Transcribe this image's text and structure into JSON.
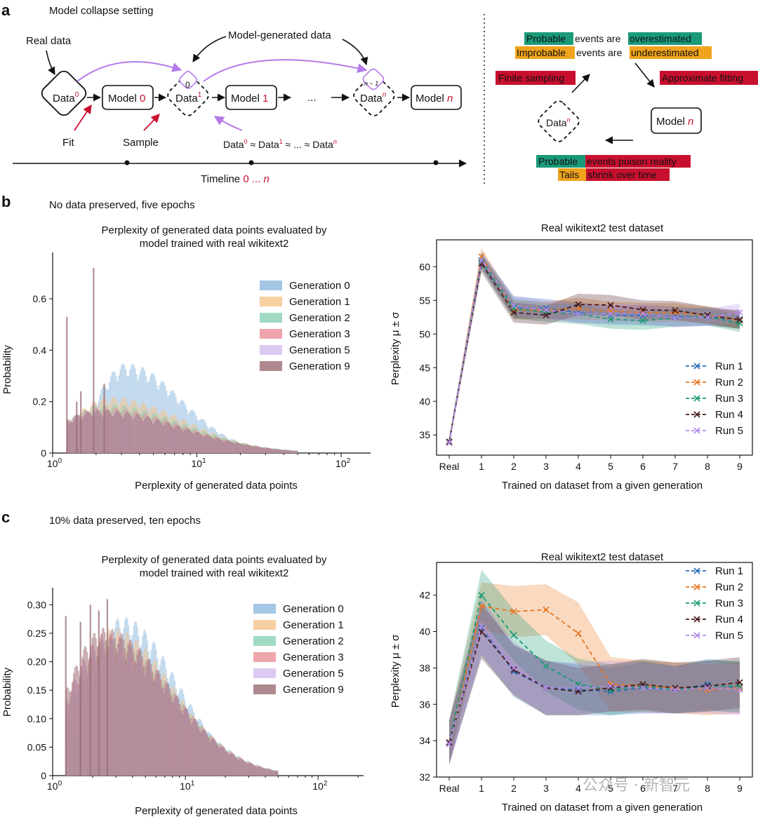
{
  "panel_a": {
    "panel_letter": "a",
    "setting_title": "Model collapse setting",
    "real_data_label": "Real data",
    "model_generated_label": "Model-generated data",
    "nodes": {
      "data_base": "Data",
      "model_base": "Model",
      "ellipsis": "...",
      "sup0": "0",
      "sup1": "1",
      "supn": "n",
      "model0_idx": "0",
      "model1_idx": "1",
      "modeln_idx": "n",
      "badge0": "0",
      "badge_n1": "n − 1"
    },
    "fit_label": "Fit",
    "sample_label": "Sample",
    "approx_formula": {
      "t1": "Data",
      "s1": "0",
      "t2": " ≈ Data",
      "s2": "1",
      "t3": " ≈ ... ≈ Data",
      "s3": "n"
    },
    "timeline": {
      "label": "Timeline",
      "range_start": "0",
      "range_sep": " ... ",
      "range_end": "n"
    },
    "right": {
      "probable": "Probable",
      "events_are": "events are",
      "overestimated": "overestimated",
      "improbable": "Improbable",
      "underestimated": "underestimated",
      "finite_sampling": "Finite sampling",
      "approximate_fitting": "Approximate fitting",
      "data_n": "Data",
      "data_n_sup": "n",
      "model_n": "Model",
      "model_n_idx": "n",
      "poison_probable": "Probable",
      "poison_rest": "events poison reality",
      "tails": "Tails",
      "shrink": "shrink over time"
    },
    "colors": {
      "red": "#c8102e",
      "green": "#1a9a78",
      "orange": "#f0a31c",
      "purple": "#b57be8"
    }
  },
  "panel_b": {
    "panel_letter": "b",
    "condition": "No data preserved, five epochs",
    "hist_title_line1": "Perplexity of generated data points evaluated by",
    "hist_title_line2": "model trained with real wikitext2",
    "hist_xlabel": "Perplexity of generated data points",
    "hist_ylabel": "Probability",
    "line_title": "Real wikitext2 test dataset",
    "line_xlabel": "Trained on dataset from a given generation",
    "line_ylabel": "Perplexity μ ± σ"
  },
  "panel_c": {
    "panel_letter": "c",
    "condition": "10% data preserved, ten epochs",
    "hist_title_line1": "Perplexity of generated data points evaluated by",
    "hist_title_line2": "model trained with real wikitext2",
    "hist_xlabel": "Perplexity of generated data points",
    "hist_ylabel": "Probability",
    "line_title": "Real wikitext2 test dataset",
    "line_xlabel": "Trained on dataset from a given generation",
    "line_ylabel": "Perplexity μ ± σ"
  },
  "watermark": "公众号 · 新智元",
  "chart_data": [
    {
      "type": "bar",
      "id": "hist_b",
      "title": "Perplexity of generated data points evaluated by model trained with real wikitext2",
      "xlabel": "Perplexity of generated data points",
      "ylabel": "Probability",
      "x_scale": "log",
      "xlim": [
        1,
        160
      ],
      "ylim": [
        0,
        0.78
      ],
      "x_ticks": [
        {
          "v": 1,
          "b": "10",
          "e": "0"
        },
        {
          "v": 10,
          "b": "10",
          "e": "1"
        },
        {
          "v": 100,
          "b": "10",
          "e": "2"
        }
      ],
      "y_ticks": [
        0,
        0.2,
        0.4,
        0.6
      ],
      "y_tick_labels": [
        "0",
        "0.2",
        "0.4",
        "0.6"
      ],
      "legend_position": "top-right",
      "series": [
        {
          "name": "Generation 0",
          "color": "#8fb9e0",
          "peak_x": 3.2,
          "peak_y": 0.35,
          "width": 0.42
        },
        {
          "name": "Generation 1",
          "color": "#f6c38a",
          "peak_x": 2.5,
          "peak_y": 0.22,
          "width": 0.55
        },
        {
          "name": "Generation 2",
          "color": "#8ad1b4",
          "peak_x": 2.3,
          "peak_y": 0.19,
          "width": 0.6
        },
        {
          "name": "Generation 3",
          "color": "#e88f96",
          "peak_x": 2.2,
          "peak_y": 0.18,
          "width": 0.6
        },
        {
          "name": "Generation 5",
          "color": "#d4bdf0",
          "peak_x": 2.1,
          "peak_y": 0.17,
          "width": 0.6
        },
        {
          "name": "Generation 9",
          "color": "#9a6b72",
          "peak_x": 2.1,
          "peak_y": 0.17,
          "width": 0.62
        }
      ],
      "spikes": [
        {
          "x": 1.24,
          "y": 0.53
        },
        {
          "x": 1.9,
          "y": 0.72
        },
        {
          "x": 1.55,
          "y": 0.24
        },
        {
          "x": 2.25,
          "y": 0.27
        },
        {
          "x": 1.45,
          "y": 0.2
        }
      ]
    },
    {
      "type": "line",
      "id": "line_b",
      "title": "Real wikitext2 test dataset",
      "xlabel": "Trained on dataset from a given generation",
      "ylabel": "Perplexity μ ± σ",
      "categories": [
        "Real",
        "1",
        "2",
        "3",
        "4",
        "5",
        "6",
        "7",
        "8",
        "9"
      ],
      "ylim": [
        32,
        64
      ],
      "y_ticks": [
        35,
        40,
        45,
        50,
        55,
        60
      ],
      "legend_position": "bottom-right",
      "series": [
        {
          "name": "Run 1",
          "color": "#2c6fb7",
          "values": [
            34,
            61,
            54,
            53.8,
            53.2,
            52.8,
            52.8,
            52.6,
            52.5,
            52.2
          ],
          "std": [
            0.6,
            1.2,
            1.6,
            1.4,
            1.5,
            1.4,
            1.5,
            1.5,
            1.3,
            1.4
          ]
        },
        {
          "name": "Run 2",
          "color": "#e8761e",
          "values": [
            33.8,
            61.5,
            53.6,
            53.5,
            53.8,
            53.4,
            53.2,
            53.2,
            52.8,
            52
          ],
          "std": [
            0.6,
            1.3,
            1.4,
            1.3,
            1.6,
            1.4,
            1.4,
            1.4,
            1.3,
            1.3
          ]
        },
        {
          "name": "Run 3",
          "color": "#1a9a78",
          "values": [
            34,
            60.8,
            53.8,
            53.2,
            53,
            52.2,
            52,
            52.4,
            52.6,
            51.6
          ],
          "std": [
            0.6,
            1.2,
            1.5,
            1.4,
            1.5,
            1.4,
            1.4,
            1.3,
            1.3,
            1.3
          ]
        },
        {
          "name": "Run 4",
          "color": "#4a1a1a",
          "values": [
            34,
            60.5,
            53.2,
            52.8,
            54.4,
            54.3,
            53.6,
            53.5,
            52.8,
            52.1
          ],
          "std": [
            0.6,
            1.3,
            1.5,
            1.4,
            1.6,
            1.5,
            1.4,
            1.4,
            1.3,
            1.3
          ]
        },
        {
          "name": "Run 5",
          "color": "#b08be8",
          "values": [
            33.8,
            61,
            54.2,
            53.6,
            53,
            53,
            53,
            52.4,
            52.5,
            53.2
          ],
          "std": [
            0.6,
            1.2,
            1.5,
            1.4,
            1.4,
            1.4,
            1.4,
            1.4,
            1.3,
            1.3
          ]
        }
      ]
    },
    {
      "type": "bar",
      "id": "hist_c",
      "title": "Perplexity of generated data points evaluated by model trained with real wikitext2",
      "xlabel": "Perplexity of generated data points",
      "ylabel": "Probability",
      "x_scale": "log",
      "xlim": [
        1,
        220
      ],
      "ylim": [
        0,
        0.33
      ],
      "x_ticks": [
        {
          "v": 1,
          "b": "10",
          "e": "0"
        },
        {
          "v": 10,
          "b": "10",
          "e": "1"
        },
        {
          "v": 100,
          "b": "10",
          "e": "2"
        }
      ],
      "y_ticks": [
        0,
        0.05,
        0.1,
        0.15,
        0.2,
        0.25,
        0.3
      ],
      "y_tick_labels": [
        "0",
        "0.05",
        "0.10",
        "0.15",
        "0.20",
        "0.25",
        "0.30"
      ],
      "legend_position": "top-right",
      "series": [
        {
          "name": "Generation 0",
          "color": "#8fb9e0",
          "peak_x": 3.3,
          "peak_y": 0.28,
          "width": 0.45
        },
        {
          "name": "Generation 1",
          "color": "#f6c38a",
          "peak_x": 2.8,
          "peak_y": 0.26,
          "width": 0.5
        },
        {
          "name": "Generation 2",
          "color": "#8ad1b4",
          "peak_x": 2.6,
          "peak_y": 0.24,
          "width": 0.55
        },
        {
          "name": "Generation 3",
          "color": "#e88f96",
          "peak_x": 2.5,
          "peak_y": 0.25,
          "width": 0.55
        },
        {
          "name": "Generation 5",
          "color": "#d4bdf0",
          "peak_x": 2.5,
          "peak_y": 0.24,
          "width": 0.55
        },
        {
          "name": "Generation 9",
          "color": "#9a6b72",
          "peak_x": 2.4,
          "peak_y": 0.26,
          "width": 0.55
        }
      ],
      "spikes": [
        {
          "x": 1.24,
          "y": 0.28
        },
        {
          "x": 1.9,
          "y": 0.3
        },
        {
          "x": 2.55,
          "y": 0.31
        },
        {
          "x": 1.6,
          "y": 0.27
        },
        {
          "x": 2.2,
          "y": 0.29
        }
      ]
    },
    {
      "type": "line",
      "id": "line_c",
      "title": "Real wikitext2 test dataset",
      "xlabel": "Trained on dataset from a given generation",
      "ylabel": "Perplexity μ ± σ",
      "categories": [
        "Real",
        "1",
        "2",
        "3",
        "4",
        "5",
        "6",
        "7",
        "8",
        "9"
      ],
      "ylim": [
        32,
        43.8
      ],
      "y_ticks": [
        32,
        34,
        36,
        38,
        40,
        42
      ],
      "legend_position": "top-right",
      "series": [
        {
          "name": "Run 1",
          "color": "#2c6fb7",
          "values": [
            33.9,
            40.2,
            37.8,
            36.9,
            36.8,
            36.7,
            36.9,
            36.8,
            37.1,
            36.9
          ],
          "std": [
            1.2,
            1.5,
            1.4,
            1.5,
            1.4,
            1.3,
            1.4,
            1.3,
            1.4,
            1.4
          ]
        },
        {
          "name": "Run 2",
          "color": "#e8761e",
          "values": [
            33.9,
            41.4,
            41.1,
            41.2,
            39.9,
            37.1,
            37,
            36.9,
            36.8,
            36.9
          ],
          "std": [
            1.2,
            1.3,
            1.4,
            1.4,
            1.7,
            1.5,
            1.4,
            1.4,
            1.4,
            1.4
          ]
        },
        {
          "name": "Run 3",
          "color": "#1a9a78",
          "values": [
            33.9,
            42,
            39.8,
            38.1,
            37.1,
            36.8,
            37,
            36.8,
            37,
            37
          ],
          "std": [
            1.2,
            1.4,
            1.4,
            1.4,
            1.4,
            1.4,
            1.4,
            1.3,
            1.4,
            1.4
          ]
        },
        {
          "name": "Run 4",
          "color": "#4a1a1a",
          "values": [
            33.9,
            40,
            37.9,
            36.9,
            36.7,
            36.9,
            37.1,
            36.9,
            37,
            37.2
          ],
          "std": [
            1.2,
            1.5,
            1.4,
            1.5,
            1.3,
            1.3,
            1.4,
            1.4,
            1.4,
            1.4
          ]
        },
        {
          "name": "Run 5",
          "color": "#b08be8",
          "values": [
            33.8,
            40.3,
            38,
            36.9,
            36.9,
            37,
            36.9,
            36.8,
            36.9,
            36.8
          ],
          "std": [
            1.2,
            1.5,
            1.4,
            1.4,
            1.4,
            1.4,
            1.4,
            1.3,
            1.4,
            1.4
          ]
        }
      ]
    }
  ]
}
